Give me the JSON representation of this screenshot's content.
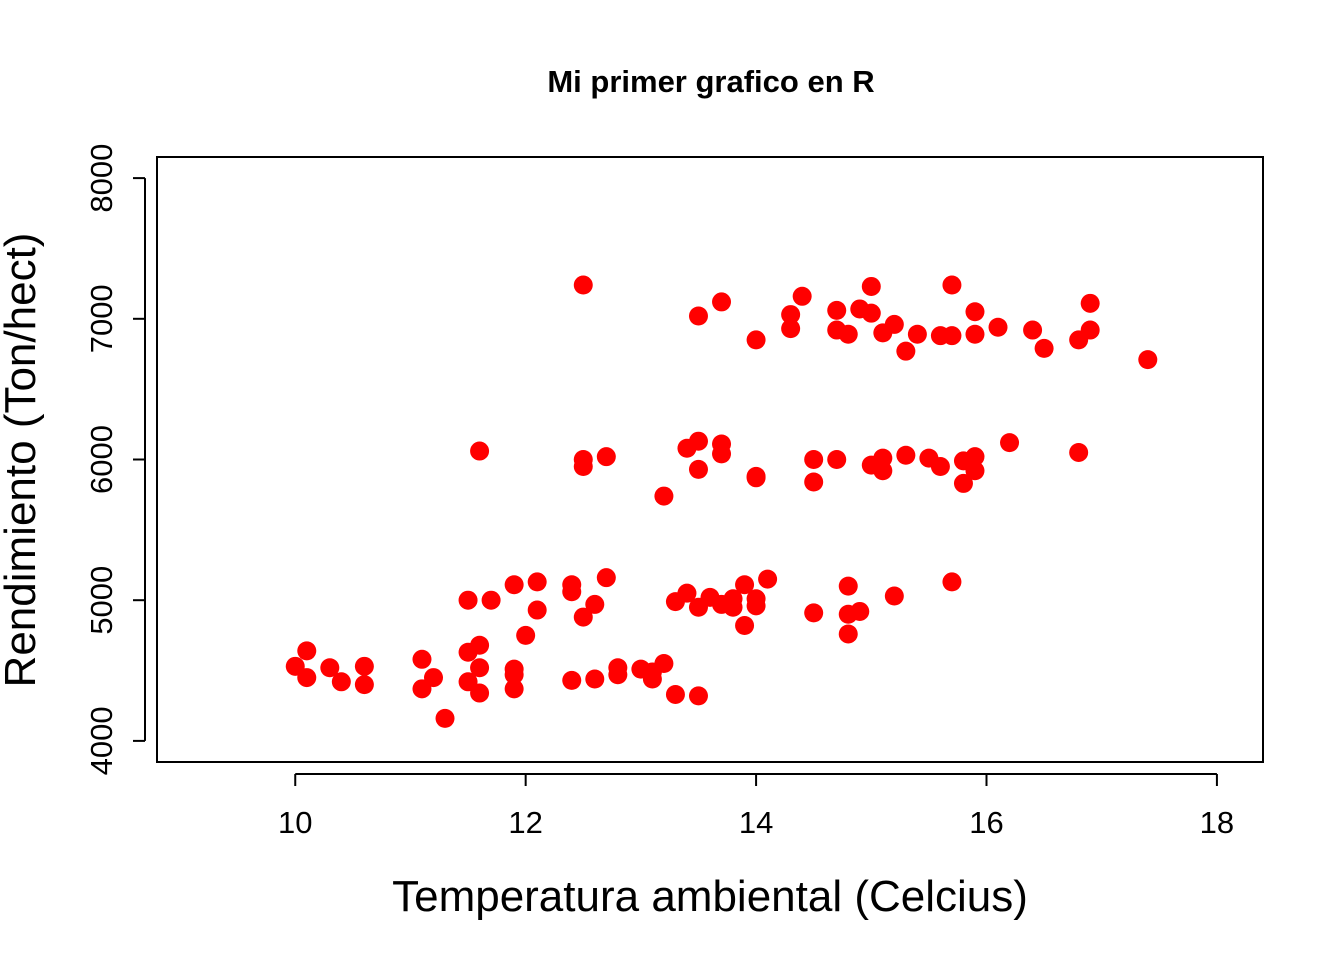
{
  "chart_data": {
    "type": "scatter",
    "title": "Mi primer grafico en R",
    "xlabel": "Temperatura ambiental (Celcius)",
    "ylabel": "Rendimiento (Ton/hect)",
    "xlim": [
      8.8,
      18.4
    ],
    "ylim": [
      3850,
      8150
    ],
    "x_ticks": [
      10,
      12,
      14,
      16,
      18
    ],
    "y_ticks": [
      4000,
      5000,
      6000,
      7000,
      8000
    ],
    "grid": false,
    "point_color": "#ff0000",
    "points": [
      [
        12.5,
        7240
      ],
      [
        15.7,
        7240
      ],
      [
        15.0,
        7230
      ],
      [
        14.4,
        7160
      ],
      [
        13.7,
        7120
      ],
      [
        16.9,
        7110
      ],
      [
        14.9,
        7070
      ],
      [
        14.7,
        7060
      ],
      [
        15.9,
        7050
      ],
      [
        15.0,
        7040
      ],
      [
        14.3,
        7030
      ],
      [
        13.5,
        7020
      ],
      [
        15.2,
        6960
      ],
      [
        16.1,
        6940
      ],
      [
        14.3,
        6930
      ],
      [
        14.7,
        6920
      ],
      [
        16.4,
        6920
      ],
      [
        16.9,
        6920
      ],
      [
        15.1,
        6900
      ],
      [
        15.4,
        6890
      ],
      [
        14.8,
        6890
      ],
      [
        15.6,
        6880
      ],
      [
        15.7,
        6880
      ],
      [
        15.9,
        6890
      ],
      [
        14.0,
        6850
      ],
      [
        16.8,
        6850
      ],
      [
        16.5,
        6790
      ],
      [
        15.3,
        6770
      ],
      [
        17.4,
        6710
      ],
      [
        13.5,
        6130
      ],
      [
        16.2,
        6120
      ],
      [
        13.7,
        6110
      ],
      [
        13.4,
        6080
      ],
      [
        11.6,
        6060
      ],
      [
        16.8,
        6050
      ],
      [
        13.7,
        6040
      ],
      [
        15.3,
        6030
      ],
      [
        12.7,
        6020
      ],
      [
        15.9,
        6020
      ],
      [
        15.5,
        6010
      ],
      [
        15.1,
        6010
      ],
      [
        12.5,
        6000
      ],
      [
        14.5,
        6000
      ],
      [
        14.7,
        6000
      ],
      [
        15.8,
        5990
      ],
      [
        15.0,
        5960
      ],
      [
        15.6,
        5950
      ],
      [
        12.5,
        5950
      ],
      [
        13.5,
        5930
      ],
      [
        15.1,
        5920
      ],
      [
        15.9,
        5920
      ],
      [
        14.0,
        5880
      ],
      [
        14.0,
        5870
      ],
      [
        14.5,
        5840
      ],
      [
        15.8,
        5830
      ],
      [
        13.2,
        5740
      ],
      [
        12.7,
        5160
      ],
      [
        14.1,
        5150
      ],
      [
        12.1,
        5130
      ],
      [
        15.7,
        5130
      ],
      [
        11.9,
        5110
      ],
      [
        12.4,
        5110
      ],
      [
        13.9,
        5110
      ],
      [
        14.8,
        5100
      ],
      [
        12.4,
        5060
      ],
      [
        13.4,
        5050
      ],
      [
        15.2,
        5030
      ],
      [
        13.6,
        5020
      ],
      [
        11.5,
        5000
      ],
      [
        11.7,
        5000
      ],
      [
        13.8,
        5010
      ],
      [
        14.0,
        5010
      ],
      [
        13.3,
        4990
      ],
      [
        12.6,
        4970
      ],
      [
        13.7,
        4970
      ],
      [
        14.0,
        4960
      ],
      [
        13.5,
        4950
      ],
      [
        13.8,
        4950
      ],
      [
        12.1,
        4930
      ],
      [
        14.9,
        4920
      ],
      [
        14.5,
        4910
      ],
      [
        14.8,
        4900
      ],
      [
        12.5,
        4880
      ],
      [
        13.9,
        4820
      ],
      [
        14.8,
        4760
      ],
      [
        12.0,
        4750
      ],
      [
        11.6,
        4680
      ],
      [
        10.1,
        4640
      ],
      [
        11.5,
        4630
      ],
      [
        11.1,
        4580
      ],
      [
        13.2,
        4550
      ],
      [
        10.0,
        4530
      ],
      [
        10.6,
        4530
      ],
      [
        11.6,
        4520
      ],
      [
        12.8,
        4520
      ],
      [
        10.3,
        4520
      ],
      [
        13.0,
        4510
      ],
      [
        11.9,
        4510
      ],
      [
        13.1,
        4490
      ],
      [
        11.9,
        4470
      ],
      [
        12.8,
        4470
      ],
      [
        11.2,
        4450
      ],
      [
        10.1,
        4450
      ],
      [
        12.6,
        4440
      ],
      [
        13.1,
        4440
      ],
      [
        12.4,
        4430
      ],
      [
        10.4,
        4420
      ],
      [
        11.5,
        4420
      ],
      [
        10.6,
        4400
      ],
      [
        11.9,
        4370
      ],
      [
        11.1,
        4370
      ],
      [
        11.6,
        4340
      ],
      [
        13.3,
        4330
      ],
      [
        13.5,
        4320
      ],
      [
        11.3,
        4160
      ]
    ]
  }
}
